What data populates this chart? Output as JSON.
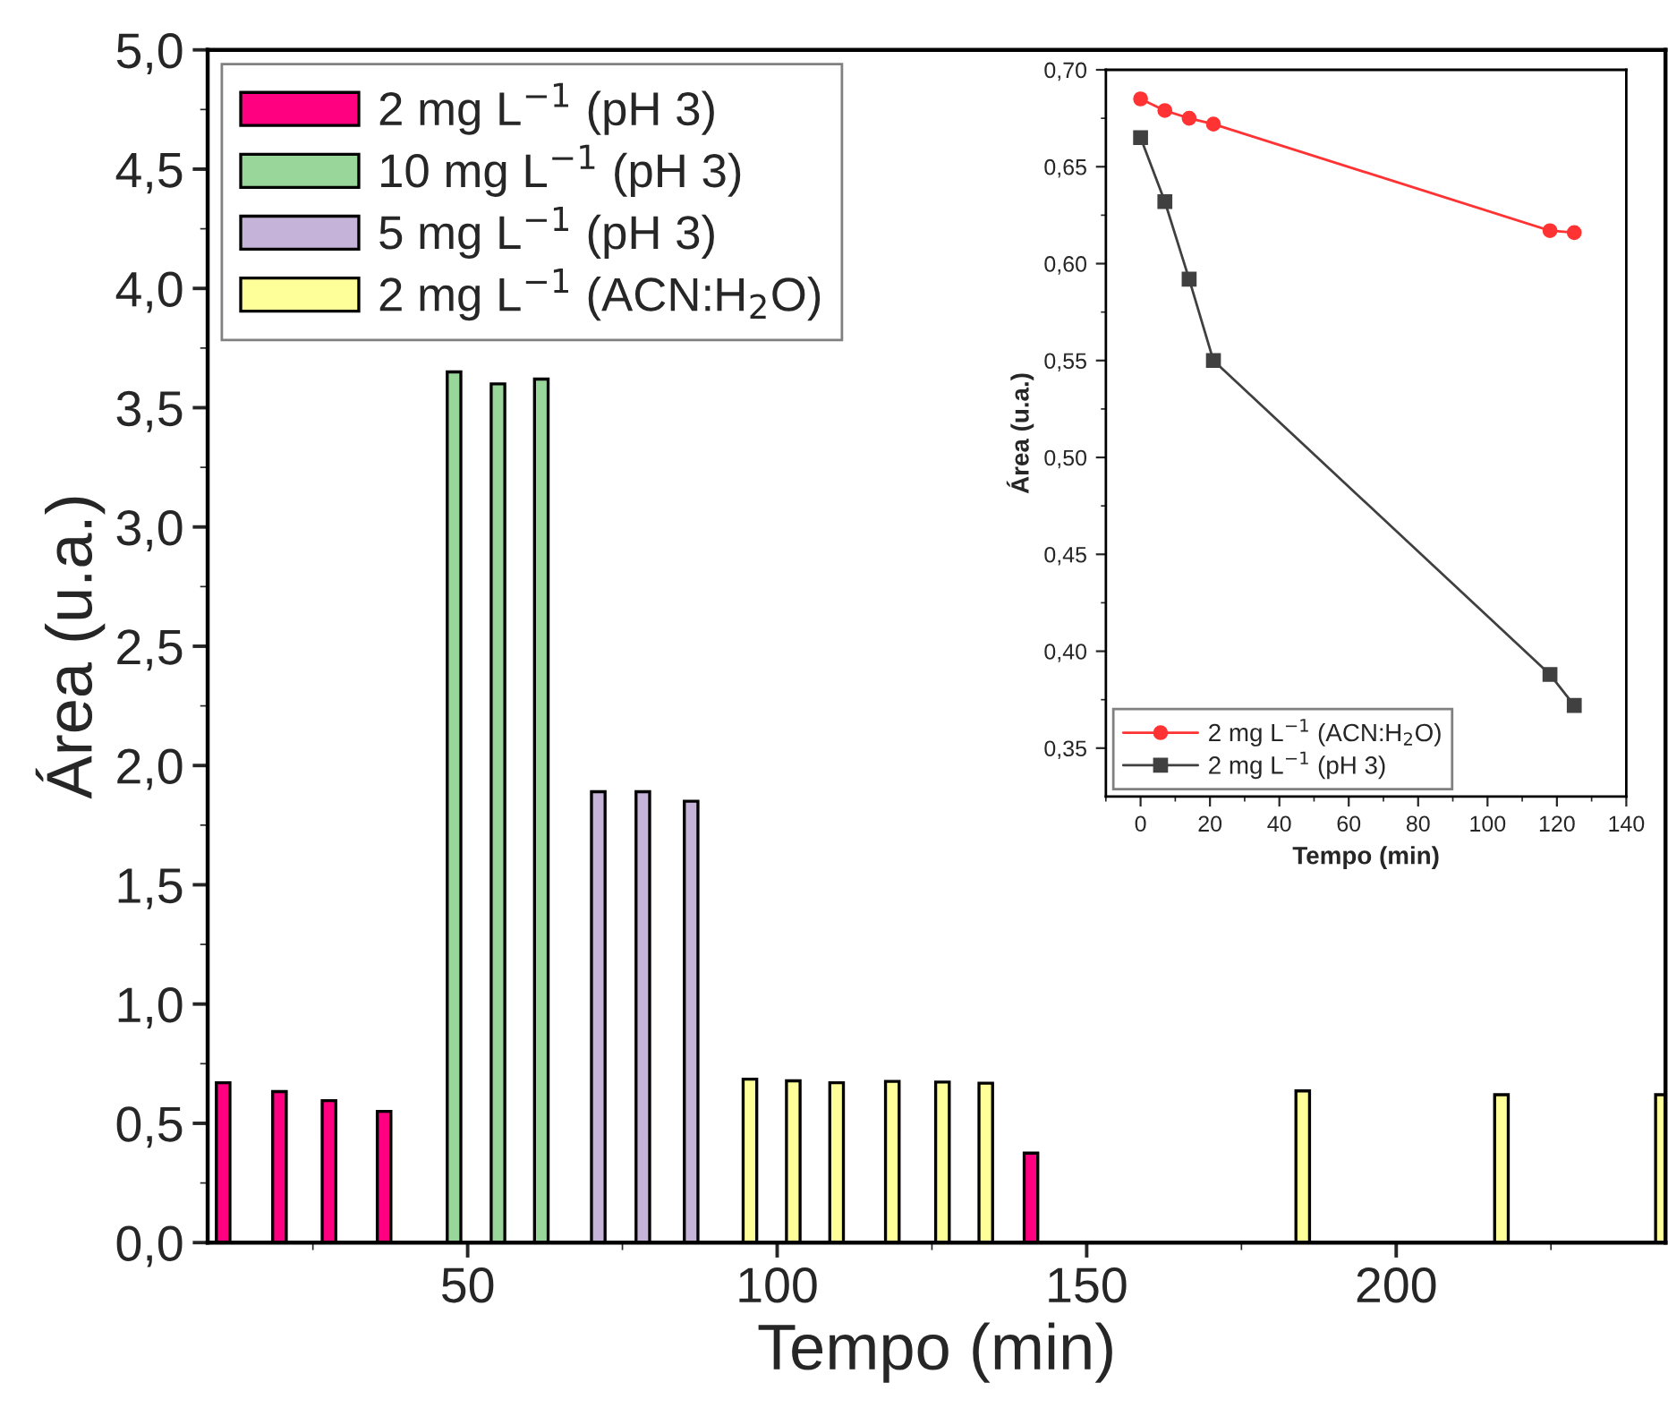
{
  "chart_data": [
    {
      "type": "bar",
      "xlabel": "Tempo (min)",
      "ylabel": "Área (u.a.)",
      "xlim": [
        8,
        243.5
      ],
      "xticks": [
        50,
        100,
        150,
        200
      ],
      "ylim": [
        0,
        5.0
      ],
      "yticks": [
        {
          "value": 0,
          "label": "0,0"
        },
        {
          "value": 0.5,
          "label": "0,5"
        },
        {
          "value": 1.0,
          "label": "1,0"
        },
        {
          "value": 1.5,
          "label": "1,5"
        },
        {
          "value": 2.0,
          "label": "2,0"
        },
        {
          "value": 2.5,
          "label": "2,5"
        },
        {
          "value": 3.0,
          "label": "3,0"
        },
        {
          "value": 3.5,
          "label": "3,5"
        },
        {
          "value": 4.0,
          "label": "4,0"
        },
        {
          "value": 4.5,
          "label": "4,5"
        },
        {
          "value": 5.0,
          "label": "5,0"
        }
      ],
      "legend": "top left",
      "grid": false,
      "series": [
        {
          "name": "2 mg L$^{−1}$ (pH 3)",
          "color": "#ff0080",
          "x": [
            10.5,
            19.6,
            27.6,
            36.5,
            141.0
          ],
          "values": [
            0.67,
            0.633,
            0.595,
            0.55,
            0.375
          ]
        },
        {
          "name": "10 mg L$^{−1}$ (pH 3)",
          "color": "#98d69a",
          "x": [
            47.8,
            54.9,
            61.9
          ],
          "values": [
            3.65,
            3.6,
            3.62
          ]
        },
        {
          "name": "5 mg L$^{−1}$ (pH 3)",
          "color": "#c6b3d9",
          "x": [
            71.1,
            78.3,
            86.1
          ],
          "values": [
            1.89,
            1.89,
            1.85
          ]
        },
        {
          "name": "2 mg L$^{−1}$ (ACN:H$_{2}$O)",
          "color": "#ffff99",
          "x": [
            95.6,
            102.6,
            109.6,
            118.6,
            126.7,
            133.7,
            184.9,
            217.0,
            243.0
          ],
          "values": [
            0.685,
            0.678,
            0.67,
            0.676,
            0.673,
            0.668,
            0.636,
            0.62,
            0.62
          ]
        }
      ]
    },
    {
      "type": "line",
      "xlabel": "Tempo (min)",
      "ylabel": "Área (u.a.)",
      "xlim": [
        -10,
        140
      ],
      "xticks": [
        0,
        20,
        40,
        60,
        80,
        100,
        120,
        140
      ],
      "ylim": [
        0.325,
        0.7
      ],
      "yticks": [
        {
          "value": 0.35,
          "label": "0,35"
        },
        {
          "value": 0.4,
          "label": "0,40"
        },
        {
          "value": 0.45,
          "label": "0,45"
        },
        {
          "value": 0.5,
          "label": "0,50"
        },
        {
          "value": 0.55,
          "label": "0,55"
        },
        {
          "value": 0.6,
          "label": "0,60"
        },
        {
          "value": 0.65,
          "label": "0,65"
        },
        {
          "value": 0.7,
          "label": "0,70"
        }
      ],
      "legend": "bottom left",
      "grid": false,
      "line_style": "solid",
      "series": [
        {
          "name": "2 mg L$^{−1}$ (ACN:H$_{2}$O)",
          "color": "#ff3333",
          "marker": "circle",
          "x": [
            0,
            7,
            14,
            21,
            118,
            125
          ],
          "values": [
            0.685,
            0.679,
            0.675,
            0.672,
            0.617,
            0.616
          ]
        },
        {
          "name": "2 mg L$^{−1}$ (pH 3)",
          "color": "#404040",
          "marker": "square",
          "x": [
            0,
            7,
            14,
            21,
            118,
            125
          ],
          "values": [
            0.665,
            0.632,
            0.592,
            0.55,
            0.388,
            0.372
          ]
        }
      ]
    }
  ]
}
